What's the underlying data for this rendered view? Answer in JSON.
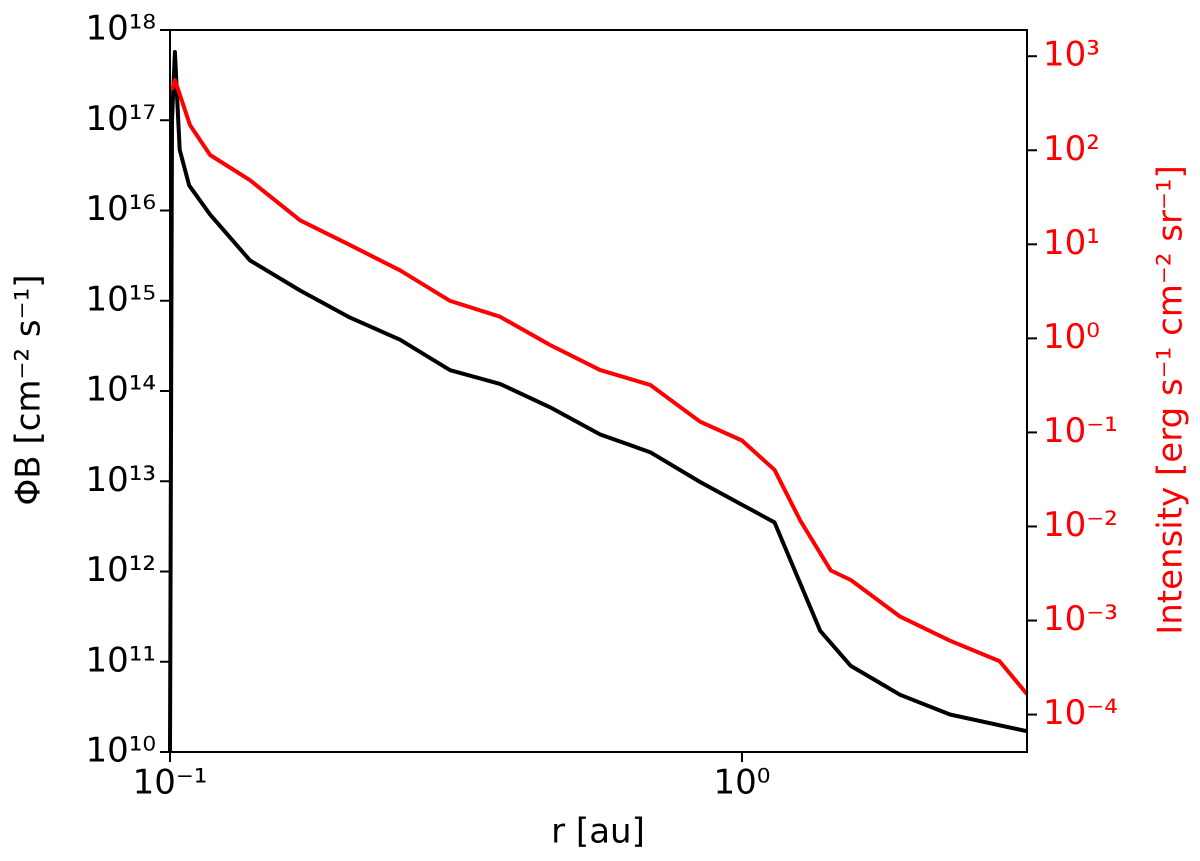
{
  "chart_data": {
    "type": "line",
    "xlabel": "r [au]",
    "ylabel": "ΦB [cm⁻² s⁻¹]",
    "y2label": "Intensity [erg s⁻¹ cm⁻² sr⁻¹]",
    "xscale": "log",
    "yscale": "log",
    "y2scale": "log",
    "xlim": [
      0.1,
      3.15
    ],
    "ylim": [
      10000000000.0,
      1e+18
    ],
    "y2lim": [
      4e-05,
      1900
    ],
    "xticks": [
      {
        "value": 0.1,
        "label": "10⁻¹"
      },
      {
        "value": 1,
        "label": "10⁰"
      }
    ],
    "yticks": [
      {
        "value": 10000000000.0,
        "label": "10¹⁰"
      },
      {
        "value": 100000000000.0,
        "label": "10¹¹"
      },
      {
        "value": 1000000000000.0,
        "label": "10¹²"
      },
      {
        "value": 10000000000000.0,
        "label": "10¹³"
      },
      {
        "value": 100000000000000.0,
        "label": "10¹⁴"
      },
      {
        "value": 1000000000000000.0,
        "label": "10¹⁵"
      },
      {
        "value": 1e+16,
        "label": "10¹⁶"
      },
      {
        "value": 1e+17,
        "label": "10¹⁷"
      },
      {
        "value": 1e+18,
        "label": "10¹⁸"
      }
    ],
    "y2ticks": [
      {
        "value": 0.0001,
        "label": "10⁻⁴"
      },
      {
        "value": 0.001,
        "label": "10⁻³"
      },
      {
        "value": 0.01,
        "label": "10⁻²"
      },
      {
        "value": 0.1,
        "label": "10⁻¹"
      },
      {
        "value": 1,
        "label": "10⁰"
      },
      {
        "value": 10,
        "label": "10¹"
      },
      {
        "value": 100,
        "label": "10²"
      },
      {
        "value": 1000,
        "label": "10³"
      }
    ],
    "y2color": "#ff0000",
    "series": [
      {
        "color": "#000000",
        "axis": "y",
        "x": [
          0.1,
          0.1008,
          0.102,
          0.104,
          0.108,
          0.1175,
          0.138,
          0.1688,
          0.2064,
          0.2524,
          0.3088,
          0.3776,
          0.4619,
          0.565,
          0.691,
          0.845,
          1.0,
          1.14,
          1.37,
          1.55,
          1.89,
          2.31,
          3.15
        ],
        "values": [
          10000000000.0,
          1e+17,
          5.7e+17,
          4.7e+16,
          1.9e+16,
          9000000000000000.0,
          2800000000000000.0,
          1300000000000000.0,
          650000000000000.0,
          370000000000000.0,
          170000000000000.0,
          120000000000000.0,
          66000000000000.0,
          33000000000000.0,
          21000000000000.0,
          9800000000000.0,
          5500000000000.0,
          3500000000000.0,
          220000000000.0,
          90000000000.0,
          43000000000.0,
          26000000000.0,
          17000000000.0
        ]
      },
      {
        "color": "#ff0000",
        "axis": "y2",
        "x": [
          0.1008,
          0.102,
          0.1084,
          0.1175,
          0.138,
          0.1688,
          0.2064,
          0.2524,
          0.3088,
          0.3776,
          0.4619,
          0.565,
          0.691,
          0.845,
          1.0,
          1.14,
          1.264,
          1.43,
          1.55,
          1.89,
          2.31,
          2.82,
          3.15
        ],
        "values": [
          440,
          560,
          185,
          89,
          48,
          18,
          9.8,
          5.3,
          2.5,
          1.7,
          0.85,
          0.46,
          0.32,
          0.13,
          0.082,
          0.04,
          0.0116,
          0.0034,
          0.0027,
          0.0011,
          0.00061,
          0.00037,
          0.000165
        ]
      }
    ]
  }
}
